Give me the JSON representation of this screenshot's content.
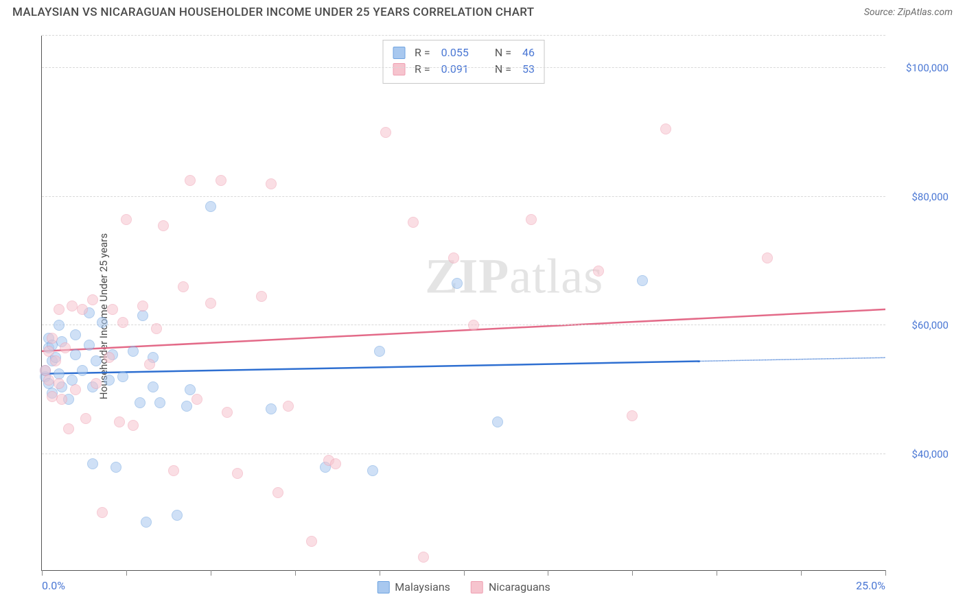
{
  "header": {
    "title": "MALAYSIAN VS NICARAGUAN HOUSEHOLDER INCOME UNDER 25 YEARS CORRELATION CHART",
    "source": "Source: ZipAtlas.com"
  },
  "watermark": {
    "zip": "ZIP",
    "atlas": "atlas"
  },
  "chart": {
    "type": "scatter",
    "y_axis_title": "Householder Income Under 25 years",
    "background_color": "#ffffff",
    "grid_color": "#d8d8d8",
    "axis_color": "#555555",
    "tick_label_color": "#4a77d4",
    "text_color": "#4a4a4a",
    "xlim": [
      0,
      25
    ],
    "ylim": [
      22000,
      105000
    ],
    "xticks": [
      0,
      2.5,
      5,
      7.5,
      10,
      12.5,
      15,
      17.5,
      20,
      22.5,
      25
    ],
    "xtick_labels": {
      "0": "0.0%",
      "25": "25.0%"
    },
    "ygrid": [
      40000,
      60000,
      80000,
      100000
    ],
    "ygrid_labels": [
      "$40,000",
      "$60,000",
      "$80,000",
      "$100,000"
    ],
    "label_fontsize": 15,
    "tick_fontsize": 15,
    "marker_radius": 8,
    "marker_opacity": 0.55,
    "series": [
      {
        "name": "Malaysians",
        "fill_color": "#a8c8ef",
        "stroke_color": "#6ea3e0",
        "line_color": "#2e6fd1",
        "R": "0.055",
        "N": "46",
        "regression": {
          "y_at_x0": 52500,
          "y_at_x25": 55000,
          "solid_until_x": 19.5
        },
        "points": [
          [
            0.1,
            52000
          ],
          [
            0.1,
            53000
          ],
          [
            0.2,
            51000
          ],
          [
            0.2,
            56500
          ],
          [
            0.2,
            58000
          ],
          [
            0.3,
            57000
          ],
          [
            0.3,
            54500
          ],
          [
            0.3,
            49500
          ],
          [
            0.4,
            55000
          ],
          [
            0.5,
            52500
          ],
          [
            0.5,
            60000
          ],
          [
            0.6,
            50500
          ],
          [
            0.6,
            57500
          ],
          [
            0.8,
            48500
          ],
          [
            0.9,
            51500
          ],
          [
            1.0,
            55500
          ],
          [
            1.0,
            58500
          ],
          [
            1.2,
            53000
          ],
          [
            1.4,
            62000
          ],
          [
            1.4,
            57000
          ],
          [
            1.5,
            50500
          ],
          [
            1.5,
            38500
          ],
          [
            1.6,
            54500
          ],
          [
            1.8,
            60500
          ],
          [
            2.0,
            51500
          ],
          [
            2.1,
            55500
          ],
          [
            2.2,
            38000
          ],
          [
            2.4,
            52000
          ],
          [
            2.7,
            56000
          ],
          [
            2.9,
            48000
          ],
          [
            3.0,
            61500
          ],
          [
            3.1,
            29500
          ],
          [
            3.3,
            55000
          ],
          [
            3.3,
            50500
          ],
          [
            3.5,
            48000
          ],
          [
            4.0,
            30500
          ],
          [
            4.3,
            47500
          ],
          [
            4.4,
            50000
          ],
          [
            5.0,
            78500
          ],
          [
            6.8,
            47000
          ],
          [
            8.4,
            38000
          ],
          [
            9.8,
            37500
          ],
          [
            10.0,
            56000
          ],
          [
            12.3,
            66500
          ],
          [
            13.5,
            45000
          ],
          [
            17.8,
            67000
          ]
        ]
      },
      {
        "name": "Nicaraguans",
        "fill_color": "#f6c4ce",
        "stroke_color": "#ef9fb2",
        "line_color": "#e36a88",
        "R": "0.091",
        "N": "53",
        "regression": {
          "y_at_x0": 56000,
          "y_at_x25": 62500,
          "solid_until_x": 25
        },
        "points": [
          [
            0.1,
            53000
          ],
          [
            0.2,
            51500
          ],
          [
            0.2,
            56000
          ],
          [
            0.3,
            58000
          ],
          [
            0.3,
            49000
          ],
          [
            0.4,
            54500
          ],
          [
            0.5,
            51000
          ],
          [
            0.5,
            62500
          ],
          [
            0.6,
            48500
          ],
          [
            0.7,
            56500
          ],
          [
            0.8,
            44000
          ],
          [
            0.9,
            63000
          ],
          [
            1.0,
            50000
          ],
          [
            1.2,
            62500
          ],
          [
            1.3,
            45500
          ],
          [
            1.5,
            64000
          ],
          [
            1.6,
            51000
          ],
          [
            1.8,
            31000
          ],
          [
            2.0,
            55000
          ],
          [
            2.1,
            62500
          ],
          [
            2.3,
            45000
          ],
          [
            2.4,
            60500
          ],
          [
            2.5,
            76500
          ],
          [
            2.7,
            44500
          ],
          [
            3.0,
            63000
          ],
          [
            3.2,
            54000
          ],
          [
            3.4,
            59500
          ],
          [
            3.6,
            75500
          ],
          [
            3.9,
            37500
          ],
          [
            4.2,
            66000
          ],
          [
            4.4,
            82500
          ],
          [
            4.6,
            48500
          ],
          [
            5.0,
            63500
          ],
          [
            5.3,
            82500
          ],
          [
            5.5,
            46500
          ],
          [
            5.8,
            37000
          ],
          [
            6.5,
            64500
          ],
          [
            6.8,
            82000
          ],
          [
            7.0,
            34000
          ],
          [
            7.3,
            47500
          ],
          [
            8.0,
            26500
          ],
          [
            8.5,
            39000
          ],
          [
            8.7,
            38500
          ],
          [
            10.2,
            90000
          ],
          [
            11.0,
            76000
          ],
          [
            11.3,
            24000
          ],
          [
            12.2,
            70500
          ],
          [
            12.8,
            60000
          ],
          [
            14.5,
            76500
          ],
          [
            16.5,
            68500
          ],
          [
            17.5,
            46000
          ],
          [
            18.5,
            90500
          ],
          [
            21.5,
            70500
          ]
        ]
      }
    ],
    "bottom_legend": [
      {
        "label": "Malaysians",
        "swatch_fill": "#a8c8ef",
        "swatch_stroke": "#6ea3e0"
      },
      {
        "label": "Nicaraguans",
        "swatch_fill": "#f6c4ce",
        "swatch_stroke": "#ef9fb2"
      }
    ],
    "stats_box": {
      "border_color": "#c8c8c8",
      "rows": [
        {
          "swatch_fill": "#a8c8ef",
          "swatch_stroke": "#6ea3e0",
          "R_label": "R =",
          "R": "0.055",
          "N_label": "N =",
          "N": "46"
        },
        {
          "swatch_fill": "#f6c4ce",
          "swatch_stroke": "#ef9fb2",
          "R_label": "R =",
          "R": "0.091",
          "N_label": "N =",
          "N": "53"
        }
      ]
    }
  }
}
